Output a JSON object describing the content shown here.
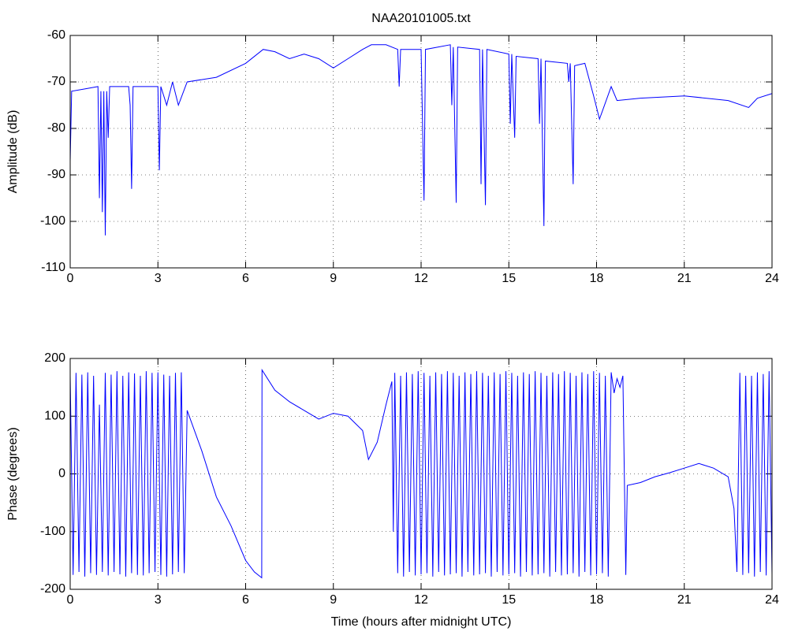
{
  "chart_data": [
    {
      "type": "line",
      "title": "NAA20101005.txt",
      "y_label": "Amplitude (dB)",
      "color": "#0000ff",
      "grid": true,
      "xlim": [
        0,
        24
      ],
      "xticks": [
        0,
        3,
        6,
        9,
        12,
        15,
        18,
        21,
        24
      ],
      "ylim": [
        -110,
        -60
      ],
      "yticks": [
        -110,
        -100,
        -90,
        -80,
        -70,
        -60
      ],
      "x": [
        0,
        0.05,
        0.5,
        0.95,
        1.0,
        1.05,
        1.1,
        1.15,
        1.2,
        1.25,
        1.3,
        1.35,
        2.0,
        2.05,
        2.1,
        2.15,
        3.0,
        3.05,
        3.1,
        3.3,
        3.5,
        3.7,
        4.0,
        5,
        6,
        6.6,
        7,
        7.5,
        8,
        8.5,
        9,
        9.5,
        10,
        10.3,
        10.8,
        11.2,
        11.25,
        11.3,
        12,
        12.1,
        12.15,
        13,
        13.05,
        13.1,
        13.2,
        13.25,
        14,
        14.05,
        14.1,
        14.2,
        14.25,
        15,
        15.05,
        15.1,
        15.2,
        15.25,
        16,
        16.05,
        16.1,
        16.2,
        16.25,
        17,
        17.05,
        17.1,
        17.2,
        17.25,
        17.6,
        17.9,
        18.1,
        18.5,
        18.7,
        19.5,
        21,
        22.5,
        23.2,
        23.5,
        24
      ],
      "values": [
        -87,
        -72,
        -71.5,
        -71,
        -95,
        -72,
        -98,
        -72,
        -103,
        -72,
        -82,
        -71,
        -71,
        -75,
        -93,
        -71,
        -71,
        -89,
        -71,
        -75,
        -70,
        -75,
        -70,
        -69,
        -66,
        -63,
        -63.5,
        -65,
        -64,
        -65,
        -67,
        -65,
        -63,
        -62,
        -62,
        -63,
        -71,
        -63,
        -63,
        -95.5,
        -63,
        -62,
        -75,
        -62.5,
        -96,
        -62.5,
        -63,
        -92,
        -63,
        -96.5,
        -63,
        -64,
        -79,
        -64,
        -82,
        -64.5,
        -65,
        -79,
        -65,
        -101,
        -65.5,
        -66,
        -70,
        -66,
        -92,
        -66.5,
        -66,
        -73,
        -78,
        -71,
        -74,
        -73.5,
        -73,
        -74,
        -75.5,
        -73.5,
        -72.5
      ]
    },
    {
      "type": "line",
      "x_label": "Time (hours after midnight UTC)",
      "y_label": "Phase (degrees)",
      "color": "#0000ff",
      "grid": true,
      "xlim": [
        0,
        24
      ],
      "xticks": [
        0,
        3,
        6,
        9,
        12,
        15,
        18,
        21,
        24
      ],
      "ylim": [
        -200,
        200
      ],
      "yticks": [
        -200,
        -100,
        0,
        100,
        200
      ],
      "x": [
        0,
        0.1,
        0.2,
        0.3,
        0.4,
        0.5,
        0.6,
        0.7,
        0.8,
        0.9,
        1,
        1.1,
        1.2,
        1.3,
        1.4,
        1.5,
        1.6,
        1.7,
        1.8,
        1.9,
        2,
        2.1,
        2.2,
        2.3,
        2.4,
        2.5,
        2.6,
        2.7,
        2.8,
        2.9,
        3,
        3.1,
        3.2,
        3.3,
        3.4,
        3.5,
        3.6,
        3.7,
        3.8,
        3.9,
        4,
        4.5,
        5,
        5.5,
        6,
        6.3,
        6.55,
        6.56,
        7,
        7.5,
        8,
        8.5,
        9,
        9.5,
        10,
        10.2,
        10.5,
        10.8,
        11,
        11.05,
        11.1,
        11.2,
        11.3,
        11.4,
        11.5,
        11.6,
        11.7,
        11.8,
        11.9,
        12,
        12.1,
        12.2,
        12.3,
        12.4,
        12.5,
        12.6,
        12.7,
        12.8,
        12.9,
        13,
        13.1,
        13.2,
        13.3,
        13.4,
        13.5,
        13.6,
        13.7,
        13.8,
        13.9,
        14,
        14.1,
        14.2,
        14.3,
        14.4,
        14.5,
        14.6,
        14.7,
        14.8,
        14.9,
        15,
        15.1,
        15.2,
        15.3,
        15.4,
        15.5,
        15.6,
        15.7,
        15.8,
        15.9,
        16,
        16.1,
        16.2,
        16.3,
        16.4,
        16.5,
        16.6,
        16.7,
        16.8,
        16.9,
        17,
        17.1,
        17.2,
        17.3,
        17.4,
        17.5,
        17.6,
        17.7,
        17.8,
        17.9,
        18,
        18.1,
        18.2,
        18.3,
        18.4,
        18.5,
        18.6,
        18.7,
        18.8,
        18.9,
        19.0,
        19.05,
        19.5,
        20,
        20.5,
        21,
        21.5,
        22,
        22.5,
        22.7,
        22.8,
        22.9,
        23,
        23.1,
        23.2,
        23.3,
        23.4,
        23.5,
        23.6,
        23.7,
        23.8,
        23.9,
        24
      ],
      "values": [
        170,
        -175,
        175,
        -170,
        172,
        -178,
        176,
        -172,
        170,
        -175,
        120,
        -170,
        175,
        -176,
        172,
        -170,
        178,
        -174,
        170,
        -178,
        176,
        -172,
        174,
        -175,
        170,
        -176,
        178,
        -172,
        175,
        -170,
        176,
        -175,
        172,
        -178,
        170,
        -174,
        175,
        -170,
        176,
        -172,
        110,
        40,
        -40,
        -90,
        -150,
        -170,
        -180,
        180,
        145,
        125,
        110,
        95,
        105,
        100,
        75,
        25,
        55,
        120,
        160,
        -100,
        175,
        -172,
        170,
        -178,
        176,
        -170,
        173,
        -176,
        178,
        -174,
        175,
        -172,
        170,
        -178,
        176,
        -170,
        173,
        -176,
        178,
        -174,
        175,
        -172,
        170,
        -178,
        176,
        -170,
        173,
        -176,
        178,
        -174,
        175,
        -172,
        170,
        -178,
        176,
        -170,
        173,
        -176,
        178,
        -174,
        175,
        -172,
        170,
        -178,
        176,
        -170,
        173,
        -176,
        178,
        -174,
        175,
        -172,
        170,
        -178,
        176,
        -170,
        173,
        -176,
        178,
        -174,
        175,
        -172,
        170,
        -178,
        176,
        -170,
        173,
        -176,
        178,
        -174,
        175,
        -172,
        170,
        -178,
        176,
        140,
        165,
        150,
        170,
        -175,
        -20,
        -15,
        -5,
        2,
        10,
        18,
        10,
        -5,
        -60,
        -170,
        175,
        -175,
        170,
        -172,
        170,
        -178,
        176,
        -170,
        173,
        -176,
        178,
        -174
      ]
    }
  ]
}
